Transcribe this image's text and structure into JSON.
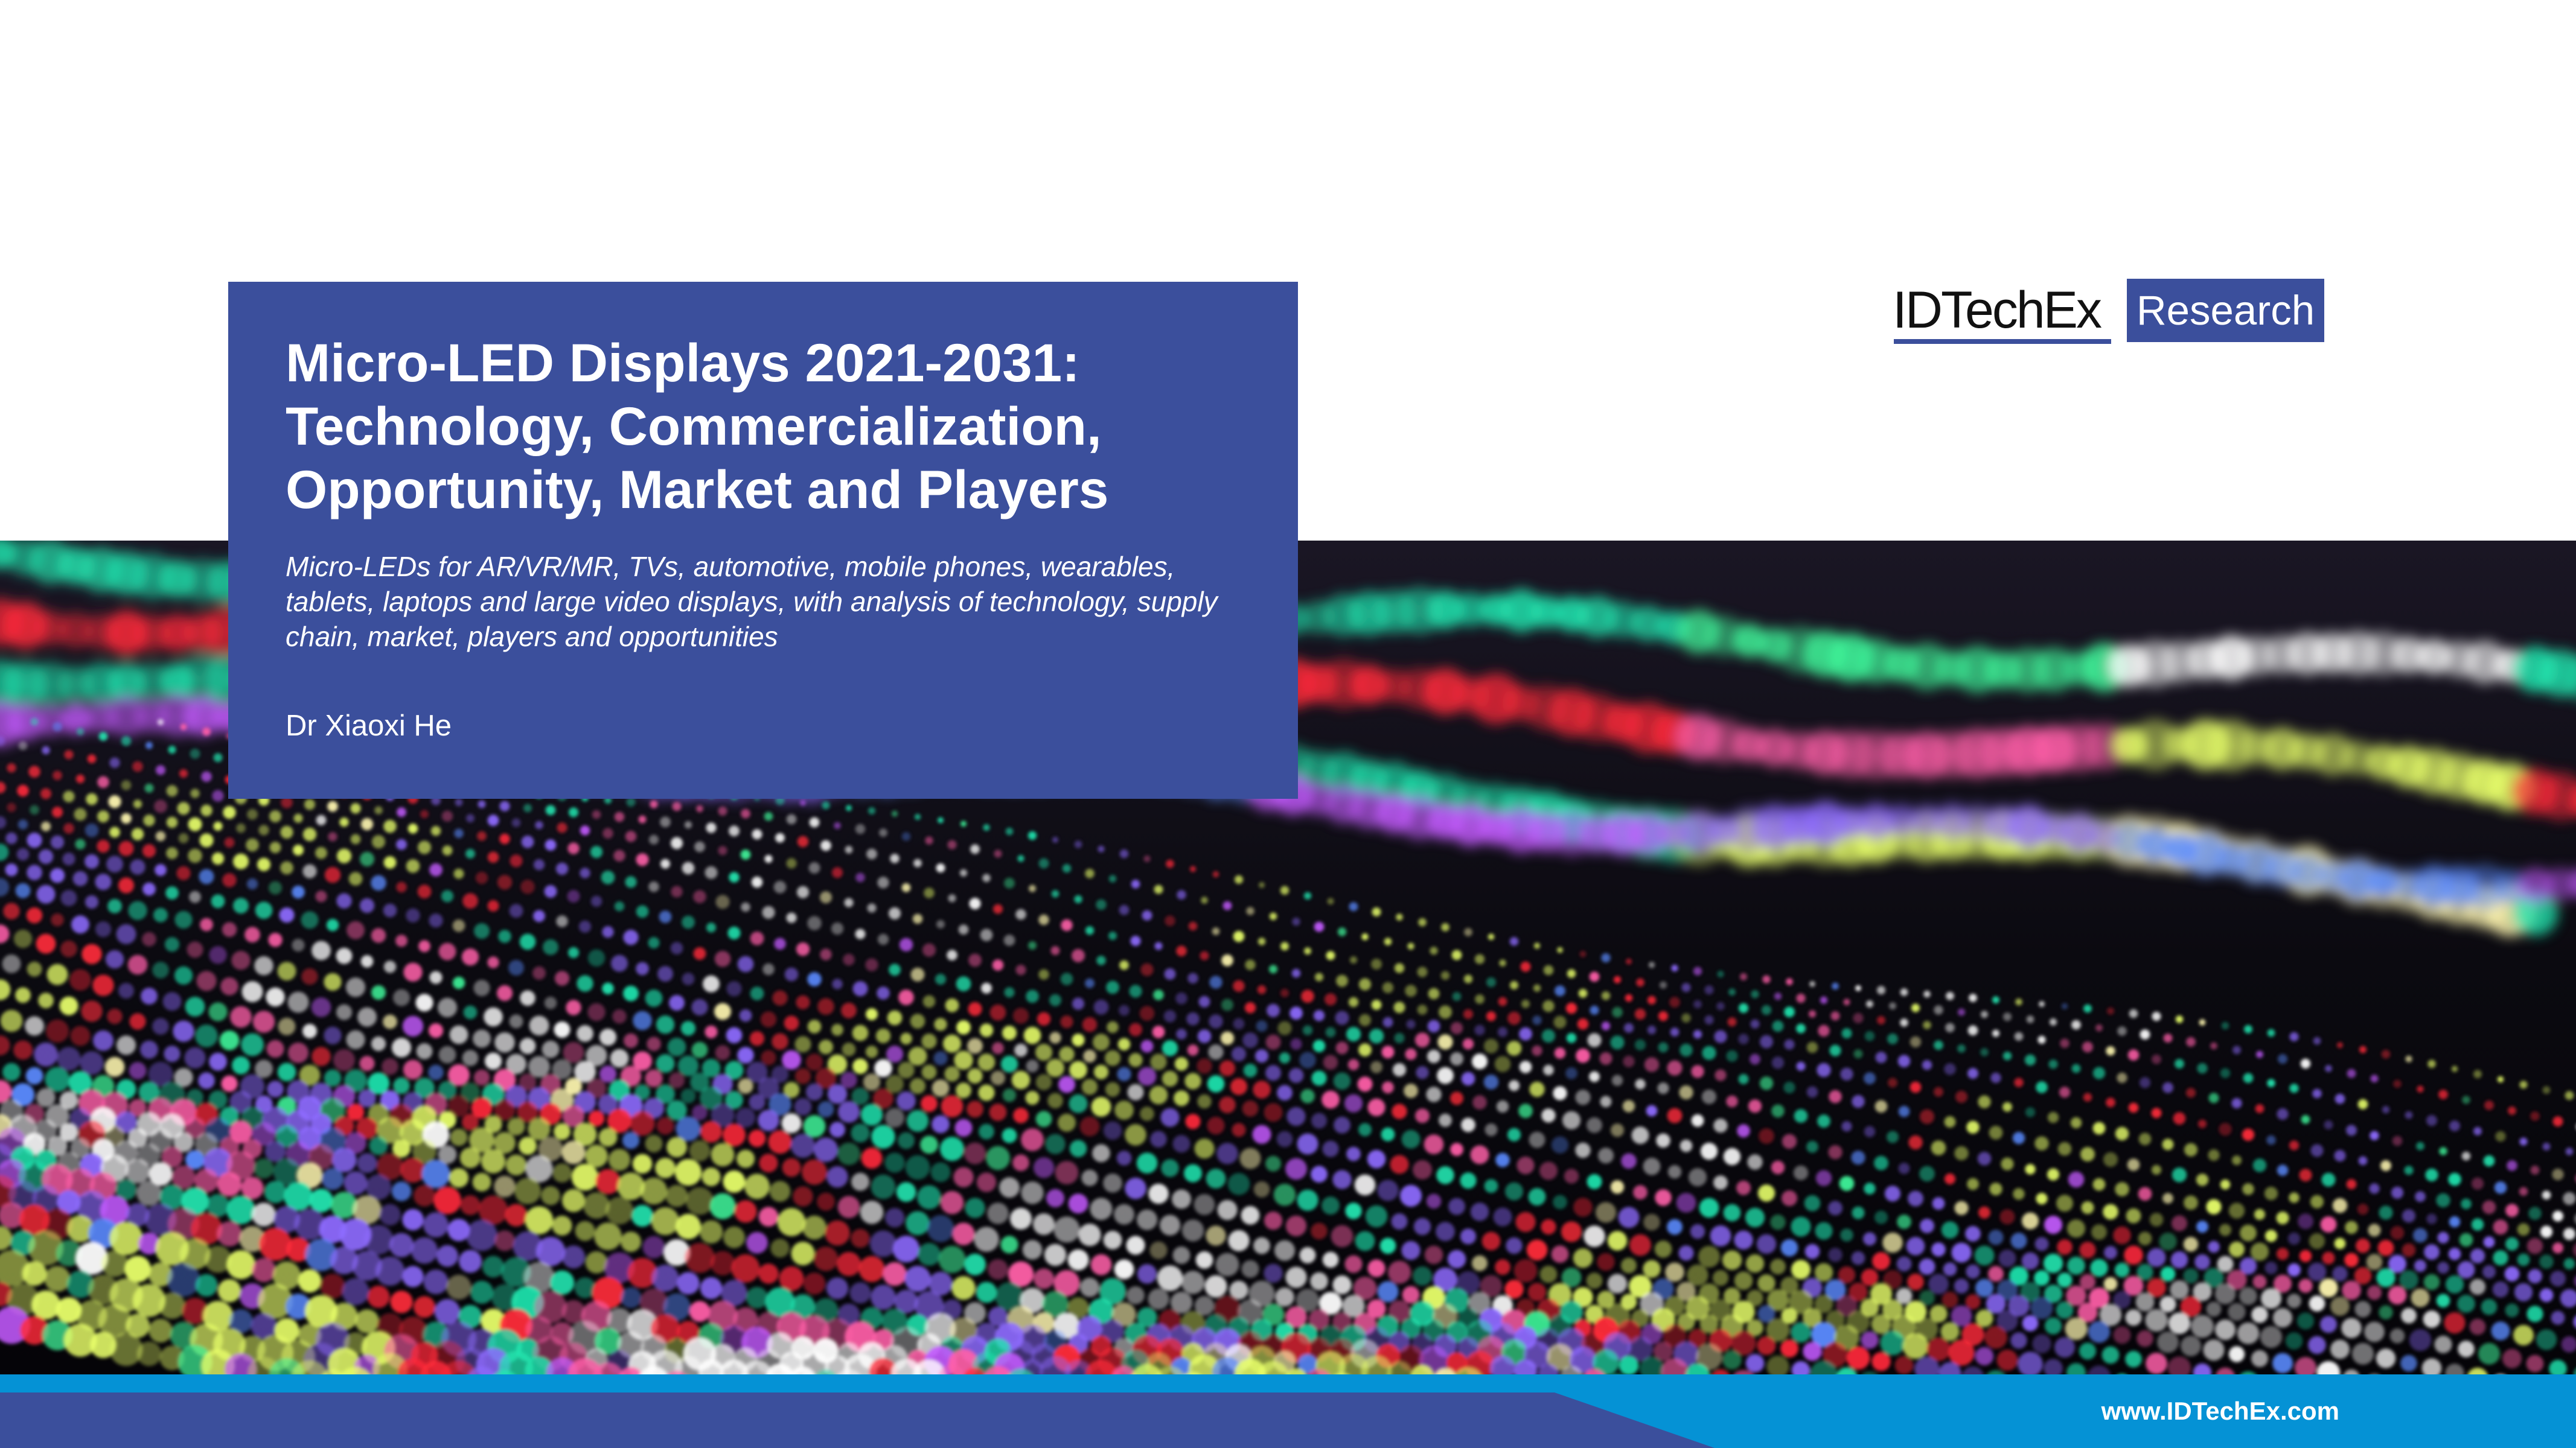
{
  "colors": {
    "brand_blue": "#3B4F9C",
    "footer_light_blue": "#0592D5",
    "footer_dark_blue": "#3B4F9C",
    "text_white": "#FFFFFF",
    "logo_text": "#111111",
    "photo_background": "#0B0A10"
  },
  "report": {
    "title_lines": [
      "Micro-LED Displays 2021-2031:",
      "Technology, Commercialization,",
      "Opportunity, Market and Players"
    ],
    "subtitle": "Micro-LEDs for AR/VR/MR, TVs, automotive, mobile phones, wearables, tablets, laptops and large video displays, with analysis of technology, supply chain, market, players and opportunities",
    "author": "Dr Xiaoxi He"
  },
  "logo": {
    "brand": "IDTechEx",
    "box_label": "Research"
  },
  "footer": {
    "url": "www.IDTechEx.com"
  },
  "photo": {
    "icon": "led-display-bokeh-image",
    "palette": [
      "#FF2A3A",
      "#FF5FA8",
      "#C45BFF",
      "#8E6BFF",
      "#5B8BFF",
      "#21E6B0",
      "#3FF59A",
      "#E8FF6A",
      "#FFF7B0",
      "#FFFFFF"
    ]
  }
}
